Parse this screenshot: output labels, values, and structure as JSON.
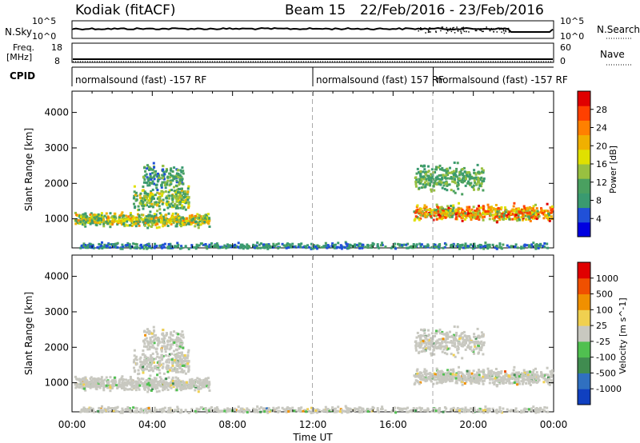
{
  "header": {
    "station": "Kodiak (fitACF)",
    "beam": "Beam 15",
    "dates": "22/Feb/2016 - 23/Feb/2016"
  },
  "panels": {
    "nsky": {
      "label": "N.Sky",
      "tick_top": "10^5",
      "tick_bottom": "10^0",
      "right_tick_top": "10^5",
      "right_tick_bottom": "10^0",
      "right_label": "N.Search"
    },
    "freq": {
      "label_line1": "Freq.",
      "label_line2": "[MHz]",
      "tick_top": "18",
      "tick_bottom": "8",
      "right_tick_top": "60",
      "right_tick_bottom": "0",
      "right_label": "Nave"
    },
    "cpid": {
      "label": "CPID",
      "segments": [
        {
          "start": 0,
          "end": 12,
          "text": "normalsound (fast) -157 RF"
        },
        {
          "start": 12,
          "end": 18,
          "text": "normalsound (fast) 157 RF"
        },
        {
          "start": 18,
          "end": 24,
          "text": "normalsound (fast) -157 RF"
        }
      ]
    }
  },
  "colorbars": {
    "power": {
      "label": "Power [dB]",
      "ticks": [
        "28",
        "24",
        "20",
        "16",
        "12",
        "8",
        "4"
      ],
      "colors": [
        "#0000e0",
        "#2050d8",
        "#3a9a70",
        "#4aa060",
        "#98c040",
        "#e0e000",
        "#f0b000",
        "#ff8000",
        "#ff4000",
        "#e00000"
      ]
    },
    "velocity": {
      "label": "Velocity [m s^-1]",
      "ticks": [
        "1000",
        "500",
        "100",
        "25",
        "-25",
        "-100",
        "-500",
        "-1000"
      ],
      "colors": [
        "#1040c0",
        "#3070c0",
        "#408c50",
        "#50c050",
        "#c8c8c0",
        "#f0d050",
        "#f09000",
        "#f05000",
        "#e00000"
      ]
    }
  },
  "chart_data": [
    {
      "type": "heatmap",
      "name": "Power",
      "ylabel": "Slant Range [km]",
      "xlim": [
        0,
        24
      ],
      "ylim": [
        180,
        4600
      ],
      "yticks": [
        "1000",
        "2000",
        "3000",
        "4000"
      ],
      "colorbar_range": [
        0,
        30
      ],
      "scatter_blobs": [
        {
          "t0": 0.1,
          "t1": 6.8,
          "r_center": 1000,
          "r_spread": 150,
          "p_low": 6,
          "p_high": 22
        },
        {
          "t0": 3.0,
          "t1": 5.8,
          "r_center": 1600,
          "r_spread": 250,
          "p_low": 6,
          "p_high": 20
        },
        {
          "t0": 3.5,
          "t1": 5.5,
          "r_center": 2200,
          "r_spread": 300,
          "p_low": 5,
          "p_high": 14
        },
        {
          "t0": 17.0,
          "t1": 23.9,
          "r_center": 1200,
          "r_spread": 180,
          "p_low": 10,
          "p_high": 28
        },
        {
          "t0": 17.0,
          "t1": 20.5,
          "r_center": 2200,
          "r_spread": 300,
          "p_low": 6,
          "p_high": 14
        },
        {
          "t0": 0.3,
          "t1": 23.8,
          "r_center": 260,
          "r_spread": 70,
          "p_low": 4,
          "p_high": 10
        }
      ]
    },
    {
      "type": "heatmap",
      "name": "Velocity",
      "ylabel": "Slant Range [km]",
      "xlim": [
        0,
        24
      ],
      "ylim": [
        180,
        4600
      ],
      "yticks": [
        "1000",
        "2000",
        "3000",
        "4000"
      ],
      "xticks": [
        "00:00",
        "04:00",
        "08:00",
        "12:00",
        "16:00",
        "20:00",
        "00:00"
      ],
      "xlabel": "Time UT",
      "colorbar_range": [
        -1000,
        1000
      ]
    }
  ]
}
